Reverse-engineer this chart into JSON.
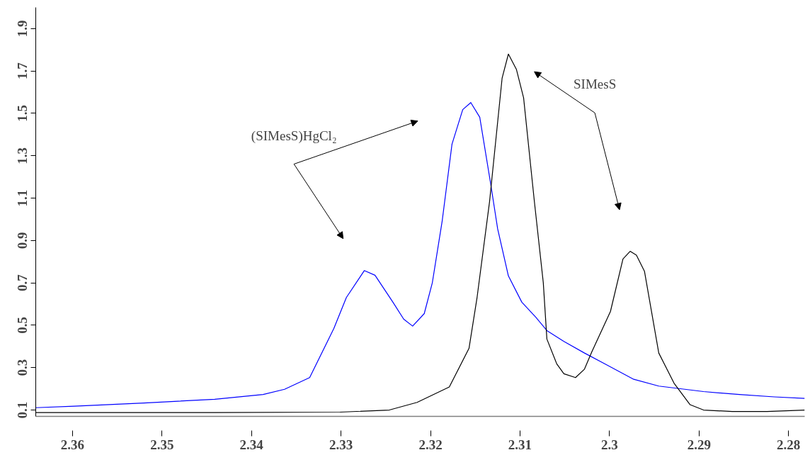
{
  "chart_data": {
    "type": "line",
    "xlim": [
      2.3641,
      2.2782
    ],
    "ylim": [
      0.07,
      2.0
    ],
    "xticks": [
      2.36,
      2.35,
      2.34,
      2.33,
      2.32,
      2.31,
      2.3,
      2.29,
      2.28
    ],
    "yticks": [
      0.1,
      0.3,
      0.5,
      0.7,
      0.9,
      1.1,
      1.3,
      1.5,
      1.7,
      1.9
    ],
    "series": [
      {
        "color": "#0000ff",
        "x": [
          2.3641,
          2.3598,
          2.352,
          2.3441,
          2.3387,
          2.3363,
          2.3335,
          2.3308,
          2.3294,
          2.3274,
          2.3262,
          2.3242,
          2.323,
          2.322,
          2.3207,
          2.3198,
          2.3187,
          2.3176,
          2.3164,
          2.3155,
          2.3145,
          2.3133,
          2.3125,
          2.3113,
          2.3098,
          2.3082,
          2.307,
          2.3051,
          2.3028,
          2.3004,
          2.2973,
          2.2945,
          2.2895,
          2.2855,
          2.2816,
          2.2782
        ],
        "values": [
          0.111,
          0.118,
          0.133,
          0.151,
          0.173,
          0.198,
          0.253,
          0.485,
          0.631,
          0.758,
          0.736,
          0.609,
          0.529,
          0.496,
          0.555,
          0.7,
          0.991,
          1.355,
          1.518,
          1.551,
          1.482,
          1.173,
          0.955,
          0.733,
          0.609,
          0.536,
          0.475,
          0.424,
          0.369,
          0.315,
          0.245,
          0.213,
          0.187,
          0.173,
          0.162,
          0.155
        ]
      },
      {
        "color": "#000000",
        "x": [
          2.3641,
          2.3441,
          2.3301,
          2.3246,
          2.3215,
          2.3179,
          2.3157,
          2.3148,
          2.3134,
          2.312,
          2.3113,
          2.3104,
          2.3096,
          2.3084,
          2.3074,
          2.307,
          2.3059,
          2.3051,
          2.3038,
          2.3028,
          2.302,
          2.2999,
          2.2985,
          2.2977,
          2.297,
          2.2961,
          2.2945,
          2.2928,
          2.291,
          2.2895,
          2.2863,
          2.2824,
          2.2782
        ],
        "values": [
          0.088,
          0.088,
          0.09,
          0.1,
          0.136,
          0.209,
          0.391,
          0.631,
          1.085,
          1.667,
          1.78,
          1.707,
          1.573,
          1.085,
          0.7,
          0.435,
          0.318,
          0.271,
          0.253,
          0.293,
          0.373,
          0.565,
          0.813,
          0.849,
          0.831,
          0.755,
          0.369,
          0.227,
          0.125,
          0.1,
          0.093,
          0.093,
          0.1
        ]
      }
    ],
    "annotations": [
      "(SIMesS)HgCl₂",
      "SIMesS"
    ],
    "grid": false,
    "marker": "none",
    "line_style": "solid"
  }
}
